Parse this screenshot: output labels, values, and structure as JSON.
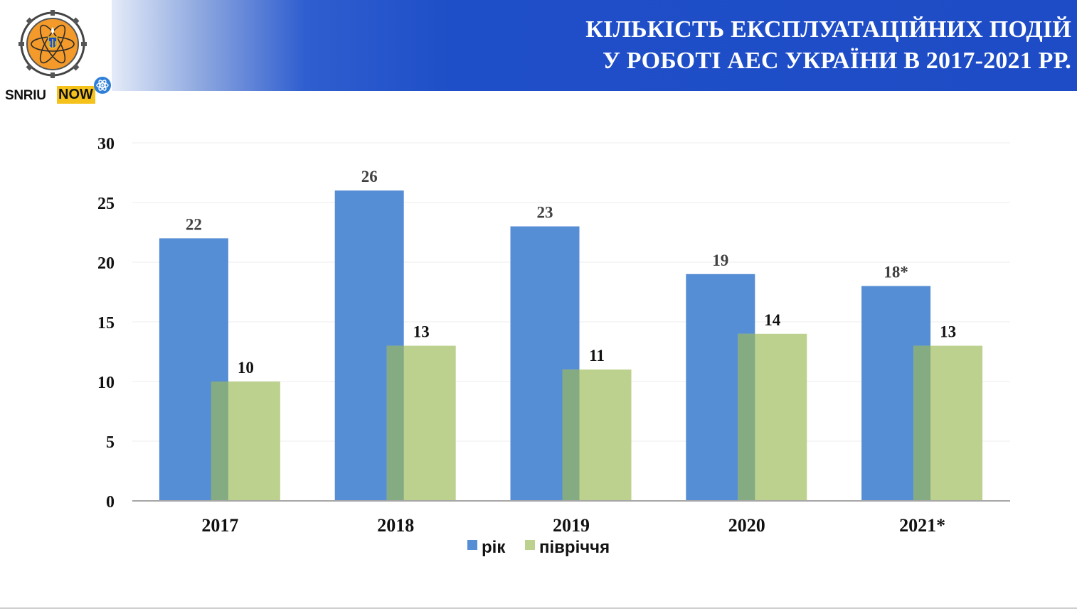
{
  "header": {
    "title_line1": "КІЛЬКІСТЬ ЕКСПЛУАТАЦІЙНИХ ПОДІЙ",
    "title_line2": "У РОБОТІ АЕС УКРАЇНИ В 2017-2021 РР."
  },
  "logo": {
    "text_left": "SNRIU",
    "text_right": "NOW"
  },
  "colors": {
    "header_blue": "#1e4cc6",
    "series_year": "#558ed5",
    "series_half": "#bdd18e",
    "overlap": "#85ab82",
    "logo_orange": "#f39a2a",
    "logo_yellow": "#f4c21b"
  },
  "chart_data": {
    "type": "bar",
    "categories": [
      "2017",
      "2018",
      "2019",
      "2020",
      "2021*"
    ],
    "series": [
      {
        "name": "рік",
        "values": [
          22,
          26,
          23,
          19,
          18
        ],
        "labels": [
          "22",
          "26",
          "23",
          "19",
          "18*"
        ],
        "color": "#558ed5"
      },
      {
        "name": "півріччя",
        "values": [
          10,
          13,
          11,
          14,
          13
        ],
        "labels": [
          "10",
          "13",
          "11",
          "14",
          "13"
        ],
        "color": "#bdd18e"
      }
    ],
    "ylim": [
      0,
      30
    ],
    "yticks": [
      0,
      5,
      10,
      15,
      20,
      25,
      30
    ],
    "grid": true,
    "legend_position": "bottom-center"
  }
}
